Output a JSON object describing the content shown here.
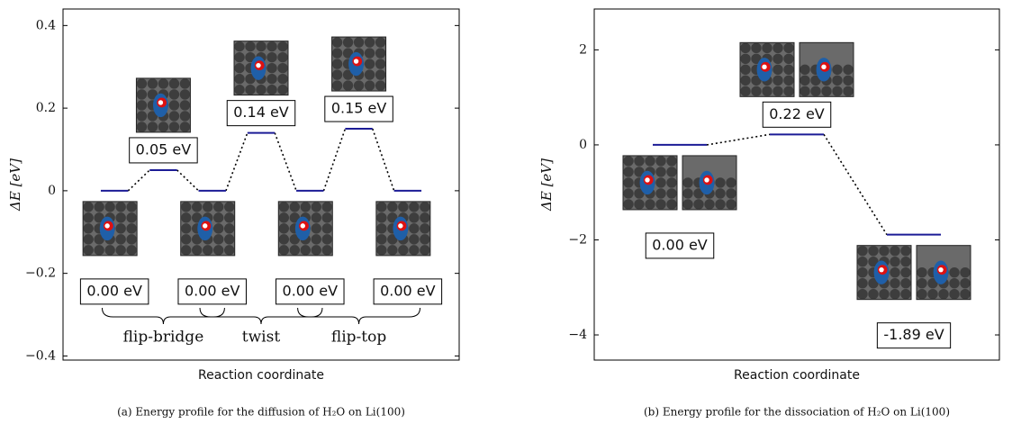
{
  "chart_data": [
    {
      "type": "energy-profile",
      "ylabel": "ΔE [eV]",
      "xlabel": "Reaction coordinate",
      "caption": "(a) Energy profile for the diffusion of H₂O on Li(100)",
      "values": [
        0,
        0.05,
        0,
        0.14,
        0,
        0.15,
        0
      ],
      "value_labels": [
        "0.00 eV",
        "0.05 eV",
        "0.00 eV",
        "0.14 eV",
        "0.00 eV",
        "0.15 eV",
        "0.00 eV"
      ],
      "annotations": [
        "flip-bridge",
        "twist",
        "flip-top"
      ],
      "color": "#1c1c96",
      "ylim": [
        -0.41,
        0.44
      ],
      "yticks": [
        {
          "value": -0.4,
          "label": "−0.4"
        },
        {
          "value": -0.2,
          "label": "−0.2"
        },
        0,
        0.2,
        0.4
      ]
    },
    {
      "type": "energy-profile",
      "ylabel": "ΔE [eV]",
      "xlabel": "Reaction coordinate",
      "caption": "(b) Energy profile for the dissociation of H₂O on Li(100)",
      "values": [
        0.0,
        0.22,
        -1.89
      ],
      "value_labels": [
        "0.00 eV",
        "0.22 eV",
        "-1.89 eV"
      ],
      "color": "#1c1c96",
      "ylim": [
        -4.53,
        2.86
      ],
      "yticks": [
        {
          "value": -4,
          "label": "−4"
        },
        {
          "value": -2,
          "label": "−2"
        },
        0,
        2
      ]
    }
  ]
}
